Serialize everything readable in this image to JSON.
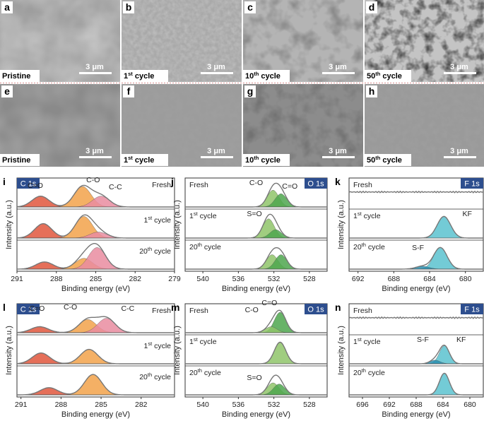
{
  "sem": {
    "scale_text": "3 μm",
    "panels": [
      {
        "letter": "a",
        "caption": "Pristine",
        "sup": "",
        "tail": ""
      },
      {
        "letter": "b",
        "caption": "1",
        "sup": "st",
        "tail": " cycle"
      },
      {
        "letter": "c",
        "caption": "10",
        "sup": "th",
        "tail": " cycle"
      },
      {
        "letter": "d",
        "caption": "50",
        "sup": "th",
        "tail": " cycle"
      },
      {
        "letter": "e",
        "caption": "Pristine",
        "sup": "",
        "tail": ""
      },
      {
        "letter": "f",
        "caption": "1",
        "sup": "st",
        "tail": " cycle"
      },
      {
        "letter": "g",
        "caption": "10",
        "sup": "th",
        "tail": " cycle"
      },
      {
        "letter": "h",
        "caption": "50",
        "sup": "th",
        "tail": " cycle"
      }
    ]
  },
  "xps": {
    "ylabel": "Intensity (a.u.)",
    "xlabel": "Binding energy (eV)",
    "colors": {
      "co": "#e0563c",
      "coh": "#f2a24a",
      "cc": "#e98ca0",
      "green_dark": "#4ea64e",
      "green_light": "#8fc46a",
      "kf": "#5bc2cf",
      "sf": "#2a8fb0",
      "envelope": "#777777",
      "tag": "#2d4e8e"
    },
    "panels": [
      {
        "letter": "i",
        "tag": "C 1s",
        "xmin": 279,
        "xmax": 291,
        "ticks": [
          291,
          288,
          285,
          282,
          279
        ],
        "rows": [
          {
            "label_main": "Fresh",
            "label_sup": "",
            "label_tail": "",
            "label_side": "right"
          },
          {
            "label_main": "1",
            "label_sup": "st",
            "label_tail": " cycle",
            "label_side": "right"
          },
          {
            "label_main": "20",
            "label_sup": "th",
            "label_tail": " cycle",
            "label_side": "right"
          }
        ],
        "peak_labels": [
          "C=O",
          "C-O",
          "C-C"
        ]
      },
      {
        "letter": "j",
        "tag": "O 1s",
        "xmin": 526,
        "xmax": 542,
        "ticks": [
          540,
          536,
          532,
          528
        ],
        "rows": [
          {
            "label_main": "Fresh",
            "label_sup": "",
            "label_tail": "",
            "label_side": "left"
          },
          {
            "label_main": "1",
            "label_sup": "st",
            "label_tail": " cycle",
            "label_side": "left"
          },
          {
            "label_main": "20",
            "label_sup": "th",
            "label_tail": " cycle",
            "label_side": "left"
          }
        ],
        "peak_labels": [
          "C-O",
          "C=O",
          "S=O"
        ]
      },
      {
        "letter": "k",
        "tag": "F 1s",
        "xmin": 678,
        "xmax": 693,
        "ticks": [
          692,
          688,
          684,
          680
        ],
        "rows": [
          {
            "label_main": "Fresh",
            "label_sup": "",
            "label_tail": "",
            "label_side": "left"
          },
          {
            "label_main": "1",
            "label_sup": "st",
            "label_tail": " cycle",
            "label_side": "left"
          },
          {
            "label_main": "20",
            "label_sup": "th",
            "label_tail": " cycle",
            "label_side": "left"
          }
        ],
        "peak_labels": [
          "KF",
          "S-F"
        ]
      },
      {
        "letter": "l",
        "tag": "C 1s",
        "xmin": 279.5,
        "xmax": 291.3,
        "ticks": [
          291,
          288,
          285,
          282
        ],
        "rows": [
          {
            "label_main": "Fresh",
            "label_sup": "",
            "label_tail": "",
            "label_side": "right"
          },
          {
            "label_main": "1",
            "label_sup": "st",
            "label_tail": " cycle",
            "label_side": "right"
          },
          {
            "label_main": "20",
            "label_sup": "th",
            "label_tail": " cycle",
            "label_side": "right"
          }
        ],
        "peak_labels": [
          "C=O",
          "C-O",
          "C-C"
        ]
      },
      {
        "letter": "m",
        "tag": "O 1s",
        "xmin": 526,
        "xmax": 542,
        "ticks": [
          540,
          536,
          532,
          528
        ],
        "rows": [
          {
            "label_main": "Fresh",
            "label_sup": "",
            "label_tail": "",
            "label_side": "left"
          },
          {
            "label_main": "1",
            "label_sup": "st",
            "label_tail": " cycle",
            "label_side": "left"
          },
          {
            "label_main": "20",
            "label_sup": "th",
            "label_tail": " cycle",
            "label_side": "left"
          }
        ],
        "peak_labels": [
          "C=O",
          "C-O",
          "S=O"
        ]
      },
      {
        "letter": "n",
        "tag": "F 1s",
        "xmin": 678,
        "xmax": 698,
        "ticks": [
          696,
          692,
          688,
          684,
          680
        ],
        "rows": [
          {
            "label_main": "Fresh",
            "label_sup": "",
            "label_tail": "",
            "label_side": "left"
          },
          {
            "label_main": "1",
            "label_sup": "st",
            "label_tail": " cycle",
            "label_side": "left"
          },
          {
            "label_main": "20",
            "label_sup": "th",
            "label_tail": " cycle",
            "label_side": "left"
          }
        ],
        "peak_labels": [
          "S-F",
          "KF"
        ]
      }
    ]
  },
  "chart_data": [
    {
      "type": "line",
      "panel": "i",
      "region": "C 1s",
      "xlim": [
        279,
        291
      ],
      "series": [
        {
          "name": "Fresh",
          "components": [
            {
              "label": "C=O",
              "center": 289.2,
              "height": 0.45
            },
            {
              "label": "C-O",
              "center": 286.0,
              "height": 0.85
            },
            {
              "label": "C-C",
              "center": 284.6,
              "height": 0.45
            }
          ]
        },
        {
          "name": "1st cycle",
          "components": [
            {
              "label": "C=O",
              "center": 289.0,
              "height": 0.6
            },
            {
              "label": "C-O",
              "center": 285.9,
              "height": 0.9
            },
            {
              "label": "C-C",
              "center": 284.8,
              "height": 0.25
            }
          ]
        },
        {
          "name": "20th cycle",
          "components": [
            {
              "label": "C=O",
              "center": 288.9,
              "height": 0.3
            },
            {
              "label": "C-O",
              "center": 285.9,
              "height": 0.45
            },
            {
              "label": "C-C",
              "center": 284.9,
              "height": 0.9
            }
          ]
        }
      ]
    },
    {
      "type": "line",
      "panel": "j",
      "region": "O 1s",
      "xlim": [
        526,
        542
      ],
      "series": [
        {
          "name": "Fresh",
          "components": [
            {
              "label": "C-O",
              "center": 532.1,
              "height": 0.7
            },
            {
              "label": "C=O",
              "center": 531.2,
              "height": 0.55
            }
          ]
        },
        {
          "name": "1st cycle",
          "components": [
            {
              "label": "S=O",
              "center": 532.6,
              "height": 0.8
            },
            {
              "label": "C=O",
              "center": 531.8,
              "height": 0.35
            }
          ]
        },
        {
          "name": "20th cycle",
          "components": [
            {
              "label": "C-O",
              "center": 532.2,
              "height": 0.6
            },
            {
              "label": "C=O",
              "center": 531.2,
              "height": 0.6
            }
          ]
        }
      ]
    },
    {
      "type": "line",
      "panel": "k",
      "region": "F 1s",
      "xlim": [
        678,
        693
      ],
      "series": [
        {
          "name": "Fresh",
          "components": []
        },
        {
          "name": "1st cycle",
          "components": [
            {
              "label": "KF",
              "center": 682.4,
              "height": 0.9
            }
          ]
        },
        {
          "name": "20th cycle",
          "components": [
            {
              "label": "KF",
              "center": 682.8,
              "height": 0.9
            },
            {
              "label": "S-F",
              "center": 684.8,
              "height": 0.12
            }
          ]
        }
      ]
    },
    {
      "type": "line",
      "panel": "l",
      "region": "C 1s",
      "xlim": [
        279.5,
        291.3
      ],
      "series": [
        {
          "name": "Fresh",
          "components": [
            {
              "label": "C=O",
              "center": 289.6,
              "height": 0.25
            },
            {
              "label": "C-O",
              "center": 286.0,
              "height": 0.55
            },
            {
              "label": "C-C",
              "center": 284.6,
              "height": 0.6
            }
          ]
        },
        {
          "name": "1st cycle",
          "components": [
            {
              "label": "C=O",
              "center": 289.5,
              "height": 0.45
            },
            {
              "label": "C-O",
              "center": 285.9,
              "height": 0.6
            }
          ]
        },
        {
          "name": "20th cycle",
          "components": [
            {
              "label": "C=O",
              "center": 288.9,
              "height": 0.3
            },
            {
              "label": "C-O",
              "center": 285.6,
              "height": 0.85
            }
          ]
        }
      ]
    },
    {
      "type": "line",
      "panel": "m",
      "region": "O 1s",
      "xlim": [
        526,
        542
      ],
      "series": [
        {
          "name": "Fresh",
          "components": [
            {
              "label": "C=O",
              "center": 531.3,
              "height": 0.85
            },
            {
              "label": "C-O",
              "center": 532.3,
              "height": 0.25
            }
          ]
        },
        {
          "name": "1st cycle",
          "components": [
            {
              "label": "S=O",
              "center": 531.3,
              "height": 0.9
            }
          ]
        },
        {
          "name": "20th cycle",
          "components": [
            {
              "label": "C-O",
              "center": 532.1,
              "height": 0.5
            },
            {
              "label": "C=O",
              "center": 531.4,
              "height": 0.45
            }
          ]
        }
      ]
    },
    {
      "type": "line",
      "panel": "n",
      "region": "F 1s",
      "xlim": [
        678,
        698
      ],
      "series": [
        {
          "name": "Fresh",
          "components": []
        },
        {
          "name": "1st cycle",
          "components": [
            {
              "label": "KF",
              "center": 683.8,
              "height": 0.75
            },
            {
              "label": "S-F",
              "center": 685.2,
              "height": 0.15
            }
          ]
        },
        {
          "name": "20th cycle",
          "components": [
            {
              "label": "KF",
              "center": 683.8,
              "height": 0.9
            }
          ]
        }
      ]
    }
  ]
}
